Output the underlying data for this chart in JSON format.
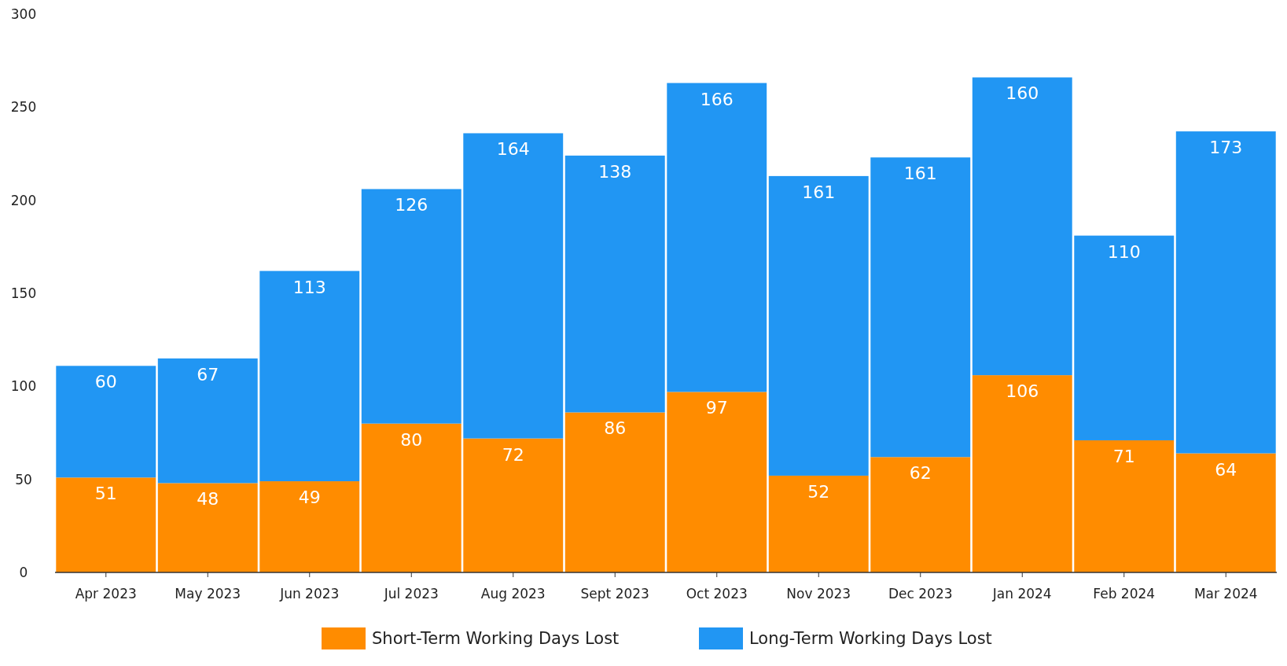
{
  "chart_data": {
    "type": "bar",
    "stacked": true,
    "categories": [
      "Apr 2023",
      "May 2023",
      "Jun 2023",
      "Jul 2023",
      "Aug 2023",
      "Sept 2023",
      "Oct 2023",
      "Nov 2023",
      "Dec 2023",
      "Jan 2024",
      "Feb 2024",
      "Mar 2024"
    ],
    "series": [
      {
        "name": "Short-Term Working Days Lost",
        "color": "#ff8c00",
        "values": [
          51,
          48,
          49,
          80,
          72,
          86,
          97,
          52,
          62,
          106,
          71,
          64
        ]
      },
      {
        "name": "Long-Term Working Days Lost",
        "color": "#2196f3",
        "values": [
          60,
          67,
          113,
          126,
          164,
          138,
          166,
          161,
          161,
          160,
          110,
          173
        ]
      }
    ],
    "ylim": [
      0,
      300
    ],
    "yticks": [
      0,
      50,
      100,
      150,
      200,
      250,
      300
    ],
    "data_labels": true,
    "legend": "bottom",
    "grid": false
  }
}
